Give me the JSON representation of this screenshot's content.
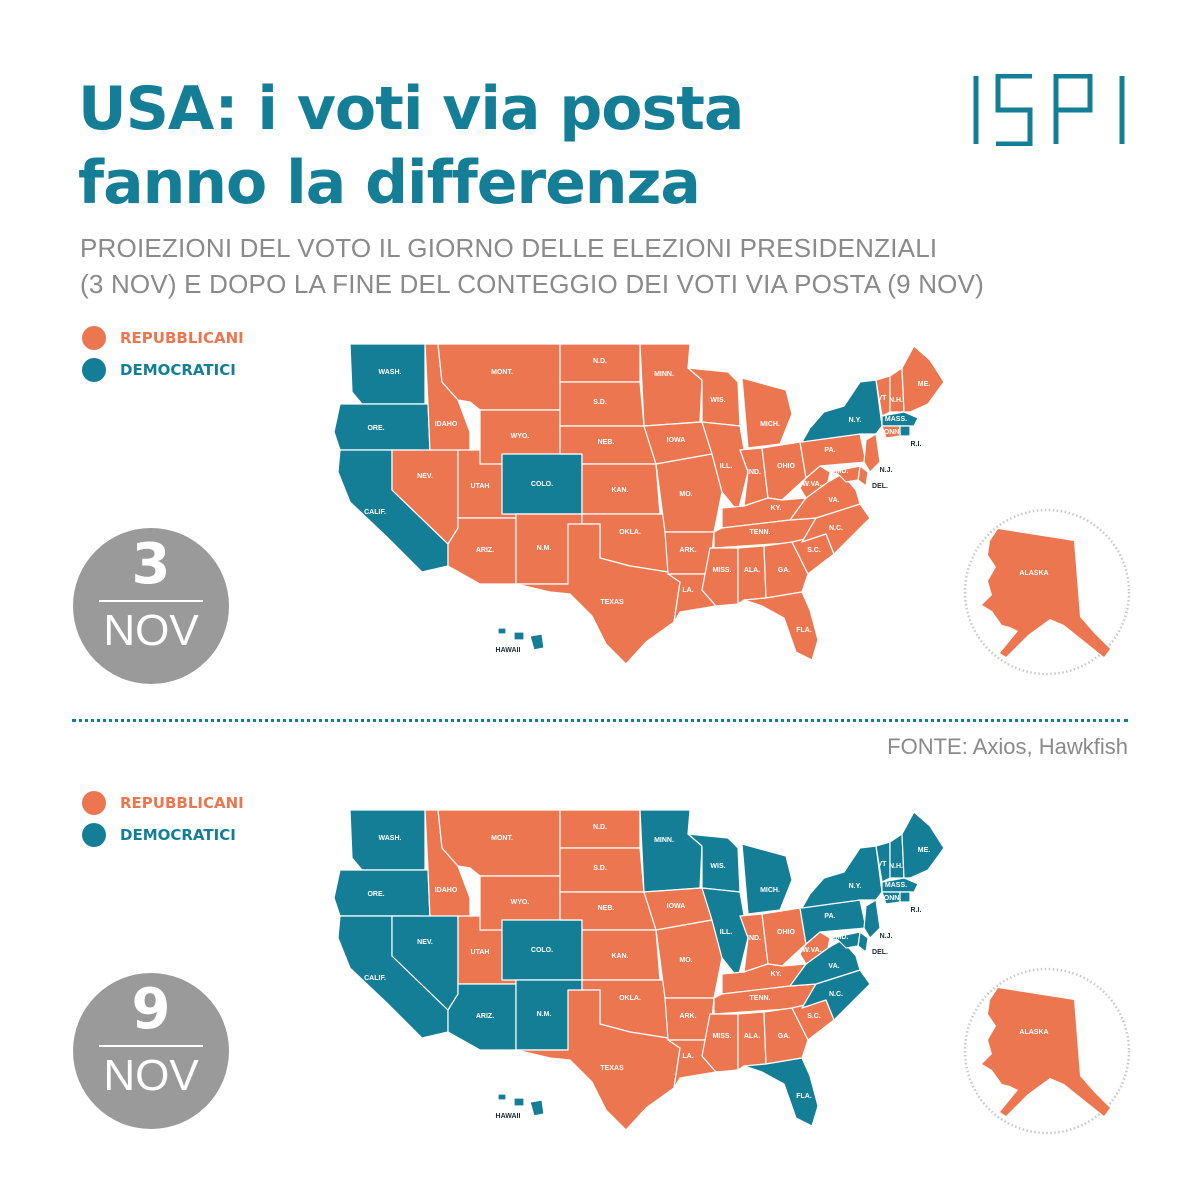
{
  "header": {
    "title_line1": "USA: i voti via posta",
    "title_line2": "fanno la differenza",
    "subtitle_line1": "PROIEZIONI DEL VOTO IL GIORNO DELLE ELEZIONI PRESIDENZIALI",
    "subtitle_line2": "(3 NOV) E DOPO LA FINE DEL CONTEGGIO DEI VOTI VIA POSTA (9 NOV)"
  },
  "logo": {
    "icon": "ispi-logo"
  },
  "legend": {
    "rep_label": "REPUBBLICANI",
    "dem_label": "DEMOCRATICI"
  },
  "colors": {
    "rep": "#ec7650",
    "dem": "#137e96",
    "badge": "#9a9a9a",
    "text_gray": "#8a8a8a"
  },
  "source": "FONTE: Axios, Hawkfish",
  "maps": [
    {
      "day_num": "3",
      "day_month": "NOV",
      "dem_states": [
        "WASH.",
        "ORE.",
        "CALIF.",
        "COLO.",
        "N.Y.",
        "MASS.",
        "R.I.",
        "HAWAII"
      ],
      "state_labels": {
        "WASH.": "WASH.",
        "ORE.": "ORE.",
        "CALIF.": "CALIF.",
        "IDAHO": "IDAHO",
        "NEV.": "NEV.",
        "UTAH": "UTAH",
        "ARIZ.": "ARIZ.",
        "MONT.": "MONT.",
        "WYO.": "WYO.",
        "COLO.": "COLO.",
        "N.M.": "N.M.",
        "N.D.": "N.D.",
        "S.D.": "S.D.",
        "NEB.": "NEB.",
        "KAN.": "KAN.",
        "OKLA.": "OKLA.",
        "TEXAS": "TEXAS",
        "MINN.": "MINN.",
        "IOWA": "IOWA",
        "MO.": "MO.",
        "ARK.": "ARK.",
        "LA.": "LA.",
        "WIS.": "WIS.",
        "ILL.": "ILL.",
        "MICH.": "MICH.",
        "IND.": "IND.",
        "OHIO": "OHIO",
        "KY.": "KY.",
        "TENN.": "TENN.",
        "MISS.": "MISS.",
        "ALA.": "ALA.",
        "GA.": "GA.",
        "FLA.": "FLA.",
        "S.C.": "S.C.",
        "N.C.": "N.C.",
        "VA.": "VA.",
        "W.VA.": "W.VA.",
        "PA.": "PA.",
        "N.Y.": "N.Y.",
        "VT": "VT",
        "N.H.": "N.H.",
        "ME.": "ME.",
        "MASS.": "MASS.",
        "CONN.": "CONN.",
        "R.I.": "R.I.",
        "N.J.": "N.J.",
        "DEL.": "DEL.",
        "MD.": "MD.",
        "HAWAII": "HAWAII",
        "ALASKA": "ALASKA"
      }
    },
    {
      "day_num": "9",
      "day_month": "NOV",
      "dem_states": [
        "WASH.",
        "ORE.",
        "CALIF.",
        "NEV.",
        "ARIZ.",
        "COLO.",
        "N.M.",
        "MINN.",
        "WIS.",
        "MICH.",
        "ILL.",
        "PA.",
        "N.Y.",
        "VT",
        "N.H.",
        "ME.",
        "MASS.",
        "CONN.",
        "R.I.",
        "N.J.",
        "DEL.",
        "MD.",
        "VA.",
        "N.C.",
        "FLA.",
        "HAWAII"
      ],
      "state_labels": {
        "WASH.": "WASH.",
        "ORE.": "ORE.",
        "CALIF.": "CALIF.",
        "IDAHO": "IDAHO",
        "NEV.": "NEV.",
        "UTAH": "UTAH",
        "ARIZ.": "ARIZ.",
        "MONT.": "MONT.",
        "WYO.": "WYO.",
        "COLO.": "COLO.",
        "N.M.": "N.M.",
        "N.D.": "N.D.",
        "S.D.": "S.D.",
        "NEB.": "NEB.",
        "KAN.": "KAN.",
        "OKLA.": "OKLA.",
        "TEXAS": "TEXAS",
        "MINN.": "MINN.",
        "IOWA": "IOWA",
        "MO.": "MO.",
        "ARK.": "ARK.",
        "LA.": "LA.",
        "WIS.": "WIS.",
        "ILL.": "ILL.",
        "MICH.": "MICH.",
        "IND.": "IND.",
        "OHIO": "OHIO",
        "KY.": "KY.",
        "TENN.": "TENN.",
        "MISS.": "MISS.",
        "ALA.": "ALA.",
        "GA.": "GA.",
        "FLA.": "FLA.",
        "S.C.": "S.C.",
        "N.C.": "N.C.",
        "VA.": "VA.",
        "W.VA.": "W.VA.",
        "PA.": "PA.",
        "N.Y.": "N.Y.",
        "VT": "VT",
        "N.H.": "N.H.",
        "ME.": "ME.",
        "MASS.": "MASS.",
        "CONN.": "CONN.",
        "R.I.": "R.I.",
        "N.J.": "N.J.",
        "DEL.": "DEL.",
        "MD.": "MD.",
        "HAWAII": "HAWAII",
        "ALASKA": "ALASKA"
      }
    }
  ]
}
